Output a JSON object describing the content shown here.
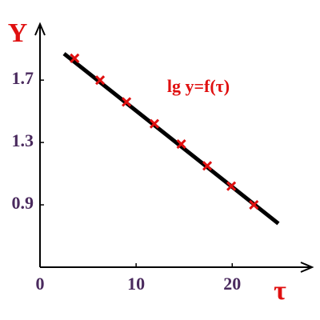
{
  "chart_data": {
    "type": "scatter",
    "title": "lg y=f(τ)",
    "y_label": "Y",
    "x_label": "τ",
    "points": {
      "color": "#e01010",
      "x": [
        3.6,
        6.25,
        9.0,
        11.9,
        14.7,
        17.4,
        19.9,
        22.25
      ],
      "values": [
        1.84,
        1.7,
        1.56,
        1.42,
        1.29,
        1.15,
        1.02,
        0.9
      ]
    },
    "fit_line": {
      "color": "#000000",
      "x": [
        2.5,
        24.8
      ],
      "values": [
        1.87,
        0.78
      ]
    },
    "xlim": [
      0,
      28.3
    ],
    "xticks": [
      0,
      10,
      20
    ],
    "ylim": [
      0.5,
      2.06
    ],
    "yticks": [
      0.9,
      1.3,
      1.7
    ],
    "grid": false
  }
}
